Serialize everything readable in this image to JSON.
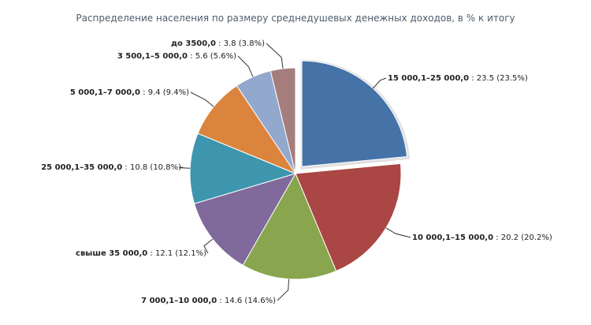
{
  "chart_data": {
    "type": "pie",
    "title": "Распределение населения по размеру среднедушевых денежных доходов, в % к итогу",
    "slices": [
      {
        "label": "15 000,1–25 000,0",
        "value": 23.5,
        "value_text": "23.5",
        "pct_text": "(23.5%)",
        "color": "#4572a7",
        "exploded": true
      },
      {
        "label": "10 000,1–15 000,0",
        "value": 20.2,
        "value_text": "20.2",
        "pct_text": "(20.2%)",
        "color": "#aa4643",
        "exploded": false
      },
      {
        "label": "7 000,1–10 000,0",
        "value": 14.6,
        "value_text": "14.6",
        "pct_text": "(14.6%)",
        "color": "#89a54e",
        "exploded": false
      },
      {
        "label": "свыше 35 000,0",
        "value": 12.1,
        "value_text": "12.1",
        "pct_text": "(12.1%)",
        "color": "#80699b",
        "exploded": false
      },
      {
        "label": "25 000,1–35 000,0",
        "value": 10.8,
        "value_text": "10.8",
        "pct_text": "(10.8%)",
        "color": "#3d96ae",
        "exploded": false
      },
      {
        "label": "5 000,1–7 000,0",
        "value": 9.4,
        "value_text": "9.4",
        "pct_text": "(9.4%)",
        "color": "#db843d",
        "exploded": false
      },
      {
        "label": "3 500,1–5 000,0",
        "value": 5.6,
        "value_text": "5.6",
        "pct_text": "(5.6%)",
        "color": "#92a8cd",
        "exploded": false
      },
      {
        "label": "до 3500,0",
        "value": 3.8,
        "value_text": "3.8",
        "pct_text": "(3.8%)",
        "color": "#a47d7c",
        "exploded": false
      }
    ]
  }
}
